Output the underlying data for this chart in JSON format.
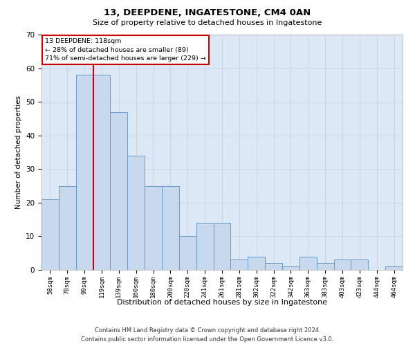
{
  "title1": "13, DEEPDENE, INGATESTONE, CM4 0AN",
  "title2": "Size of property relative to detached houses in Ingatestone",
  "xlabel": "Distribution of detached houses by size in Ingatestone",
  "ylabel": "Number of detached properties",
  "categories": [
    "58sqm",
    "78sqm",
    "99sqm",
    "119sqm",
    "139sqm",
    "160sqm",
    "180sqm",
    "200sqm",
    "220sqm",
    "241sqm",
    "261sqm",
    "281sqm",
    "302sqm",
    "322sqm",
    "342sqm",
    "363sqm",
    "383sqm",
    "403sqm",
    "423sqm",
    "444sqm",
    "464sqm"
  ],
  "values": [
    21,
    25,
    58,
    58,
    47,
    34,
    25,
    25,
    10,
    14,
    14,
    3,
    4,
    2,
    1,
    4,
    2,
    3,
    3,
    0,
    1
  ],
  "bar_color": "#c8d9ee",
  "bar_edge_color": "#6699cc",
  "ref_line_x": 2.5,
  "ref_line_label": "13 DEEPDENE: 118sqm",
  "annotation_line1": "← 28% of detached houses are smaller (89)",
  "annotation_line2": "71% of semi-detached houses are larger (229) →",
  "annotation_box_color": "#ffffff",
  "annotation_box_edge": "#cc0000",
  "ylim": [
    0,
    70
  ],
  "yticks": [
    0,
    10,
    20,
    30,
    40,
    50,
    60,
    70
  ],
  "grid_color": "#c8d0dc",
  "bg_color": "#dce8f5",
  "footer1": "Contains HM Land Registry data © Crown copyright and database right 2024.",
  "footer2": "Contains public sector information licensed under the Open Government Licence v3.0."
}
